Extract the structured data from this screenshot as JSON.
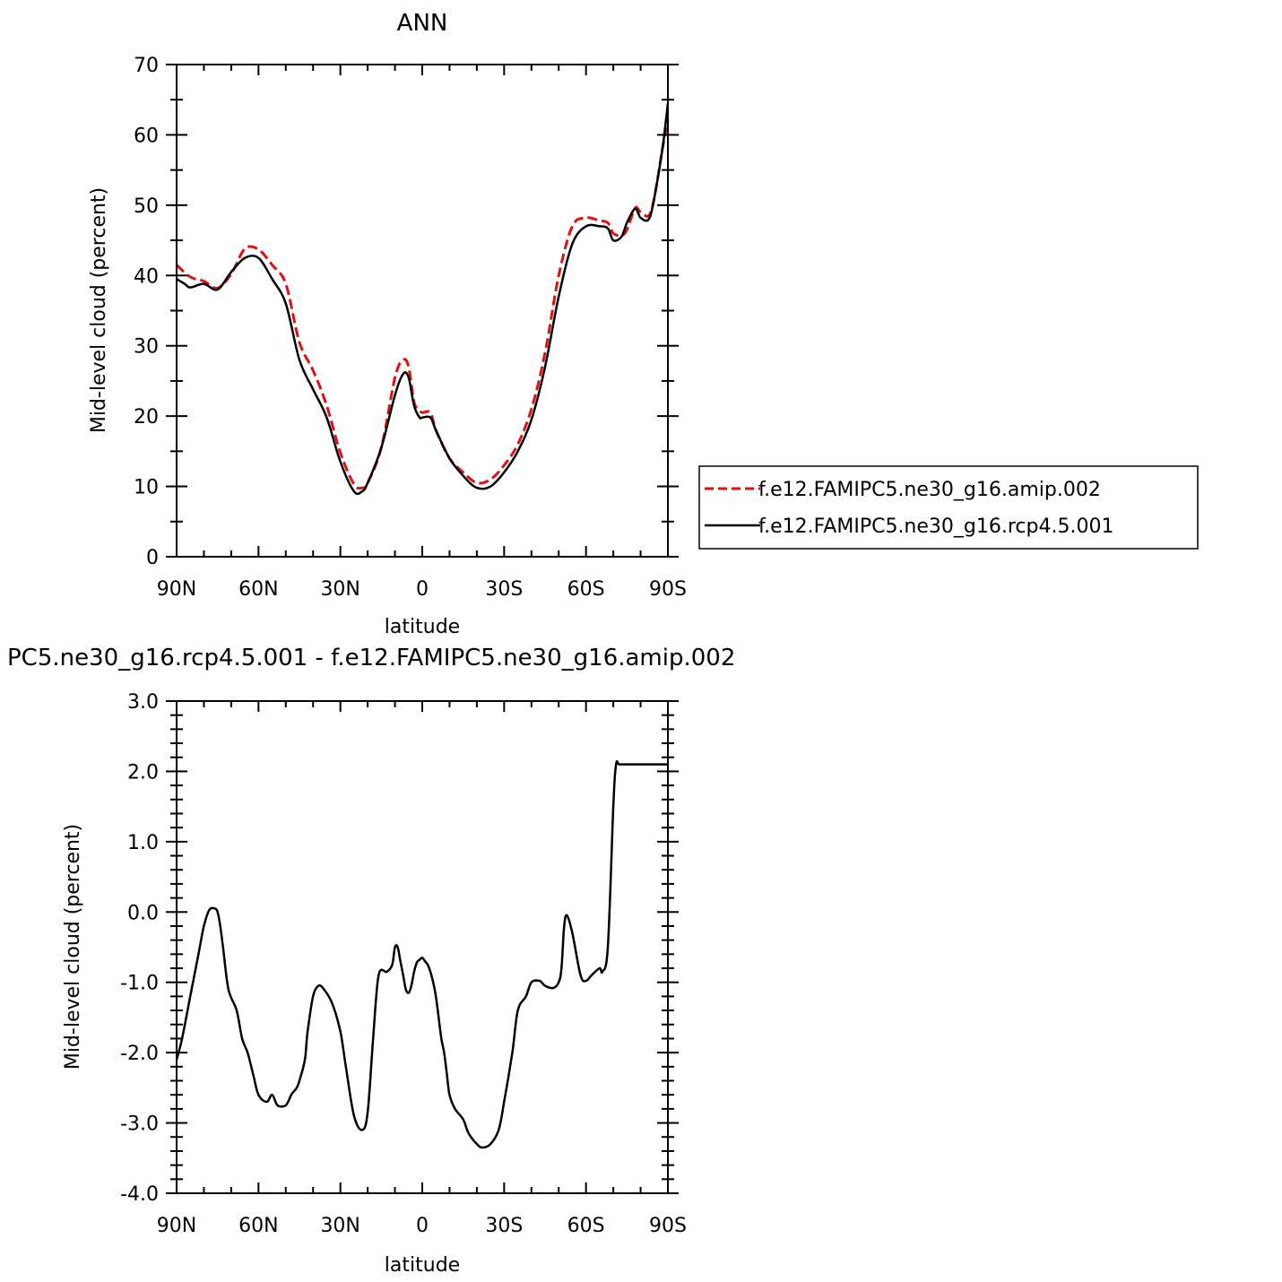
{
  "chart_data": [
    {
      "type": "line",
      "title": "ANN",
      "xlabel": "latitude",
      "ylabel": "Mid-level cloud (percent)",
      "xlim": [
        90,
        -90
      ],
      "ylim": [
        0,
        70
      ],
      "x_ticks": [
        {
          "value": 90,
          "label": "90N"
        },
        {
          "value": 60,
          "label": "60N"
        },
        {
          "value": 30,
          "label": "30N"
        },
        {
          "value": 0,
          "label": "0"
        },
        {
          "value": -30,
          "label": "30S"
        },
        {
          "value": -60,
          "label": "60S"
        },
        {
          "value": -90,
          "label": "90S"
        }
      ],
      "y_ticks": [
        {
          "value": 0,
          "label": "0"
        },
        {
          "value": 10,
          "label": "10"
        },
        {
          "value": 20,
          "label": "20"
        },
        {
          "value": 30,
          "label": "30"
        },
        {
          "value": 40,
          "label": "40"
        },
        {
          "value": 50,
          "label": "50"
        },
        {
          "value": 60,
          "label": "60"
        },
        {
          "value": 70,
          "label": "70"
        }
      ],
      "legend": {
        "placement": "right"
      },
      "series": [
        {
          "name": "f.e12.FAMIPC5.ne30_g16.amip.002",
          "color": "#e01010",
          "dash": "dashed",
          "x": [
            90,
            85,
            80,
            75,
            70,
            65,
            60,
            55,
            50,
            45,
            40,
            35,
            30,
            25,
            22,
            20,
            15,
            10,
            7,
            5,
            3,
            1,
            0,
            -3,
            -5,
            -10,
            -15,
            -20,
            -25,
            -30,
            -35,
            -40,
            -45,
            -50,
            -55,
            -60,
            -65,
            -68,
            -70,
            -73,
            -75,
            -78,
            -80,
            -83,
            -85,
            -88,
            -90
          ],
          "y": [
            41.5,
            39.8,
            39.2,
            38.2,
            40.2,
            43.8,
            43.7,
            41.5,
            38.8,
            30.5,
            26.5,
            21.5,
            14.8,
            10.3,
            9.8,
            10.5,
            15.5,
            25.5,
            28,
            27,
            22,
            20.8,
            20.5,
            20.5,
            18,
            14,
            12,
            10.5,
            11,
            13,
            16,
            21,
            29,
            40,
            47,
            48.2,
            47.8,
            47.5,
            46,
            45.7,
            46.5,
            49.6,
            49,
            48.5,
            51,
            58,
            62
          ]
        },
        {
          "name": "f.e12.FAMIPC5.ne30_g16.rcp4.5.001",
          "color": "#000000",
          "dash": "solid",
          "x": [
            90,
            87,
            85,
            80,
            75,
            70,
            65,
            60,
            55,
            50,
            45,
            40,
            35,
            30,
            25,
            22,
            20,
            15,
            10,
            7,
            5,
            3,
            1,
            0,
            -3,
            -5,
            -10,
            -15,
            -20,
            -25,
            -30,
            -35,
            -40,
            -45,
            -50,
            -55,
            -60,
            -65,
            -68,
            -70,
            -73,
            -75,
            -78,
            -80,
            -83,
            -85,
            -88,
            -90
          ],
          "y": [
            39.5,
            38.8,
            38.3,
            38.8,
            38.0,
            40.5,
            42.5,
            42.5,
            39.5,
            36,
            28,
            23.8,
            19.8,
            13.5,
            9.3,
            9.3,
            10.5,
            15.5,
            23,
            26,
            25.5,
            21.5,
            19.8,
            19.8,
            19.8,
            18,
            14,
            11.5,
            9.8,
            10,
            12,
            15,
            19.5,
            27,
            37,
            44.5,
            47,
            47,
            46.7,
            45,
            45.5,
            47.5,
            49.5,
            48.2,
            48,
            51,
            58,
            64.5
          ]
        }
      ]
    },
    {
      "type": "line",
      "title": "PC5.ne30_g16.rcp4.5.001 - f.e12.FAMIPC5.ne30_g16.amip.002",
      "xlabel": "latitude",
      "ylabel": "Mid-level cloud (percent)",
      "xlim": [
        90,
        -90
      ],
      "ylim": [
        -4,
        3
      ],
      "x_ticks": [
        {
          "value": 90,
          "label": "90N"
        },
        {
          "value": 60,
          "label": "60N"
        },
        {
          "value": 30,
          "label": "30N"
        },
        {
          "value": 0,
          "label": "0"
        },
        {
          "value": -30,
          "label": "30S"
        },
        {
          "value": -60,
          "label": "60S"
        },
        {
          "value": -90,
          "label": "90S"
        }
      ],
      "y_ticks": [
        {
          "value": 3,
          "label": "3.0"
        },
        {
          "value": 2,
          "label": "2.0"
        },
        {
          "value": 1,
          "label": "1.0"
        },
        {
          "value": 0,
          "label": "0.0"
        },
        {
          "value": -1,
          "label": "-1.0"
        },
        {
          "value": -2,
          "label": "-2.0"
        },
        {
          "value": -3,
          "label": "-3.0"
        },
        {
          "value": -4,
          "label": "-4.0"
        }
      ],
      "series": [
        {
          "color": "#000000",
          "dash": "solid",
          "x": [
            90,
            88,
            85,
            82,
            80,
            78,
            76,
            75,
            74,
            73,
            71,
            68,
            66,
            64,
            62,
            60,
            57,
            55,
            53,
            50,
            48,
            47,
            46,
            45,
            43,
            42,
            40,
            38,
            36,
            33,
            30,
            28,
            25,
            22,
            20,
            18,
            16,
            13,
            11,
            10,
            9,
            8,
            7,
            6,
            5,
            4,
            3,
            2,
            1,
            0,
            -1,
            -2,
            -3,
            -4,
            -5,
            -6,
            -7,
            -8,
            -9,
            -10,
            -12,
            -15,
            -17,
            -20,
            -22,
            -25,
            -28,
            -30,
            -33,
            -35,
            -38,
            -40,
            -43,
            -45,
            -48,
            -50,
            -51,
            -52,
            -53,
            -55,
            -58,
            -60,
            -62,
            -65,
            -66,
            -68,
            -70,
            -71,
            -72,
            -73,
            -74,
            -75,
            -76,
            -77,
            -78,
            -79,
            -80,
            -82,
            -83,
            -84,
            -85,
            -86,
            -87,
            -88,
            -89,
            -90
          ],
          "y": [
            -2.1,
            -1.8,
            -1.2,
            -0.6,
            -0.2,
            0.03,
            0.05,
            0.0,
            -0.2,
            -0.5,
            -1.1,
            -1.4,
            -1.8,
            -2.0,
            -2.3,
            -2.6,
            -2.7,
            -2.6,
            -2.75,
            -2.75,
            -2.6,
            -2.55,
            -2.5,
            -2.4,
            -2.1,
            -1.7,
            -1.2,
            -1.05,
            -1.1,
            -1.3,
            -1.7,
            -2.2,
            -2.9,
            -3.1,
            -2.85,
            -1.8,
            -0.9,
            -0.85,
            -0.75,
            -0.5,
            -0.5,
            -0.7,
            -0.9,
            -1.1,
            -1.15,
            -1.05,
            -0.85,
            -0.72,
            -0.68,
            -0.65,
            -0.7,
            -0.75,
            -0.85,
            -1.0,
            -1.2,
            -1.5,
            -1.8,
            -2.0,
            -2.3,
            -2.6,
            -2.8,
            -2.95,
            -3.15,
            -3.3,
            -3.35,
            -3.3,
            -3.1,
            -2.7,
            -2.0,
            -1.4,
            -1.2,
            -1.0,
            -0.98,
            -1.05,
            -1.08,
            -1.0,
            -0.8,
            -0.2,
            -0.05,
            -0.3,
            -0.9,
            -0.98,
            -0.9,
            -0.8,
            -0.85,
            -0.5,
            1.5,
            2.1,
            2.1,
            2.1,
            2.1,
            2.1,
            2.1,
            2.1,
            2.1,
            2.1,
            2.1,
            2.1,
            2.1,
            2.1,
            2.1,
            2.1,
            2.1,
            2.1,
            2.1,
            2.1
          ]
        }
      ]
    }
  ]
}
